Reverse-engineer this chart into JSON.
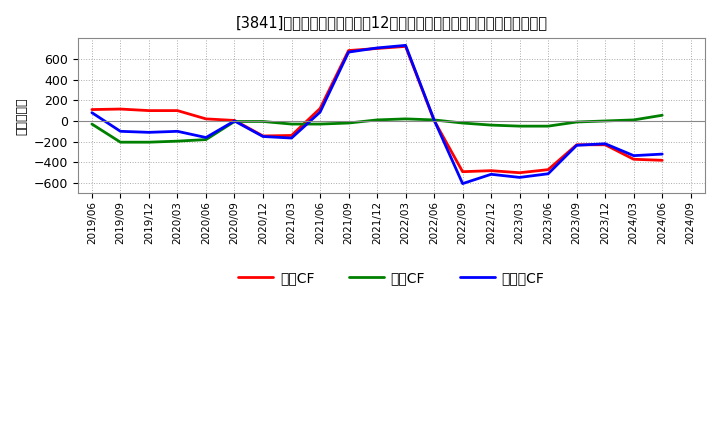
{
  "title": "[3841]　キャッシュフローの12か月移動合計の対前年同期増減額の推移",
  "ylabel": "（百万円）",
  "ylim": [
    -700,
    800
  ],
  "yticks": [
    -600,
    -400,
    -200,
    0,
    200,
    400,
    600
  ],
  "bg_color": "#ffffff",
  "plot_bg_color": "#ffffff",
  "grid_color": "#aaaaaa",
  "line_width": 2.0,
  "dates": [
    "2019/06",
    "2019/09",
    "2019/12",
    "2020/03",
    "2020/06",
    "2020/09",
    "2020/12",
    "2021/03",
    "2021/06",
    "2021/09",
    "2021/12",
    "2022/03",
    "2022/06",
    "2022/09",
    "2022/12",
    "2023/03",
    "2023/06",
    "2023/09",
    "2023/12",
    "2024/03",
    "2024/06",
    "2024/09"
  ],
  "operating_cf": [
    110,
    115,
    100,
    100,
    20,
    5,
    -145,
    -140,
    120,
    680,
    700,
    720,
    5,
    -490,
    -480,
    -500,
    -470,
    -230,
    -230,
    -370,
    -380,
    null
  ],
  "investing_cf": [
    -30,
    -205,
    -205,
    -195,
    -180,
    -5,
    -5,
    -30,
    -30,
    -20,
    10,
    20,
    10,
    -20,
    -40,
    -50,
    -50,
    -10,
    0,
    10,
    55,
    null
  ],
  "free_cf": [
    80,
    -100,
    -110,
    -100,
    -160,
    0,
    -150,
    -165,
    85,
    665,
    705,
    730,
    10,
    -605,
    -515,
    -545,
    -510,
    -235,
    -220,
    -335,
    -320,
    null
  ],
  "legend_labels": [
    "営業CF",
    "投資CF",
    "フリーCF"
  ],
  "legend_colors": [
    "#ff0000",
    "#008000",
    "#0000ff"
  ]
}
